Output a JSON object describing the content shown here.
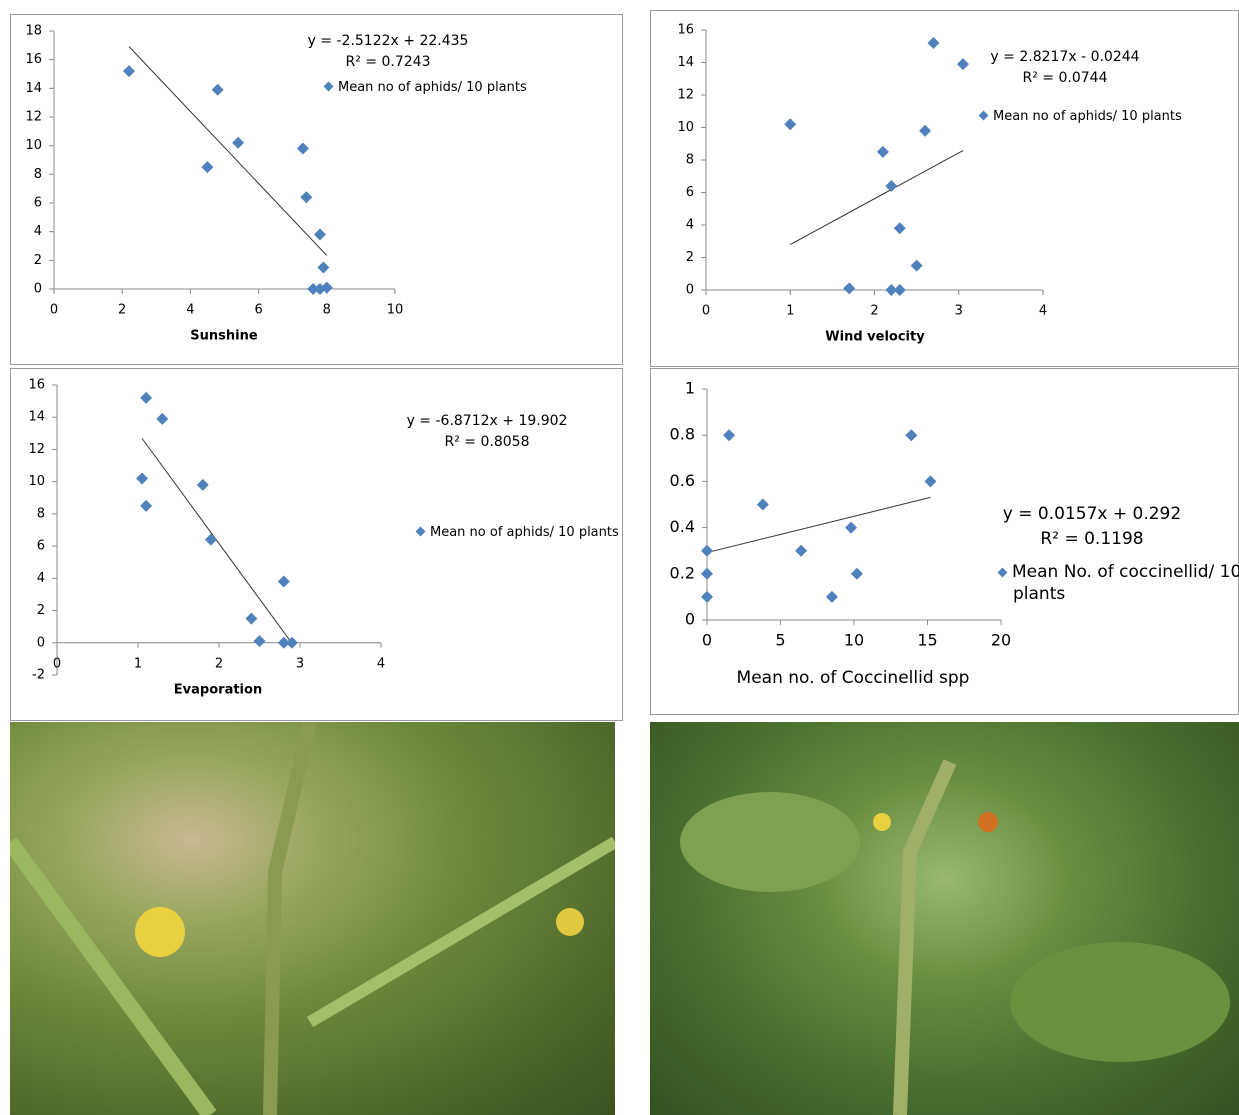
{
  "chart_data": [
    {
      "type": "scatter",
      "xlabel": "Sunshine",
      "x": [
        2.2,
        4.8,
        4.5,
        5.4,
        7.3,
        7.4,
        7.8,
        7.9,
        7.6,
        7.8,
        8.0
      ],
      "series": [
        {
          "name": "Mean no of  aphids/ 10 plants",
          "color": "#4f81bd",
          "values": [
            15.2,
            13.9,
            8.5,
            10.2,
            9.8,
            6.4,
            3.8,
            1.5,
            0,
            0,
            0.1
          ]
        }
      ],
      "trendline": {
        "slope": -2.5122,
        "intercept": 22.435,
        "label": "y = -2.5122x + 22.435",
        "r2_label": "R² = 0.7243"
      },
      "xlim": [
        0,
        10
      ],
      "xticks": [
        0,
        2,
        4,
        6,
        8,
        10
      ],
      "ylim": [
        0,
        18
      ],
      "yticks": [
        0,
        2,
        4,
        6,
        8,
        10,
        12,
        14,
        16,
        18
      ],
      "grid": false
    },
    {
      "type": "scatter",
      "xlabel": "Wind velocity",
      "x": [
        1.0,
        1.7,
        2.1,
        2.2,
        2.2,
        2.3,
        2.3,
        2.5,
        2.6,
        2.7,
        3.05
      ],
      "series": [
        {
          "name": "Mean no of  aphids/ 10 plants",
          "color": "#4f81bd",
          "values": [
            10.2,
            0.1,
            8.5,
            6.4,
            0,
            3.8,
            0,
            1.5,
            9.8,
            15.2,
            13.9
          ]
        }
      ],
      "trendline": {
        "slope": 2.8217,
        "intercept": -0.0244,
        "label": "y = 2.8217x - 0.0244",
        "r2_label": "R² = 0.0744"
      },
      "xlim": [
        0,
        4
      ],
      "xticks": [
        0,
        1,
        2,
        3,
        4
      ],
      "ylim": [
        0,
        16
      ],
      "yticks": [
        0,
        2,
        4,
        6,
        8,
        10,
        12,
        14,
        16
      ],
      "grid": false
    },
    {
      "type": "scatter",
      "xlabel": "Evaporation",
      "x": [
        1.1,
        1.3,
        1.05,
        1.1,
        1.8,
        1.9,
        2.8,
        2.4,
        2.5,
        2.8,
        2.9
      ],
      "series": [
        {
          "name": "Mean no of  aphids/ 10 plants",
          "color": "#4f81bd",
          "values": [
            15.2,
            13.9,
            10.2,
            8.5,
            9.8,
            6.4,
            3.8,
            1.5,
            0.1,
            0,
            0
          ]
        }
      ],
      "trendline": {
        "slope": -6.8712,
        "intercept": 19.902,
        "label": "y = -6.8712x + 19.902",
        "r2_label": "R² = 0.8058"
      },
      "xlim": [
        0,
        4
      ],
      "xticks": [
        0,
        1,
        2,
        3,
        4
      ],
      "ylim": [
        -2,
        16
      ],
      "yticks": [
        -2,
        0,
        2,
        4,
        6,
        8,
        10,
        12,
        14,
        16
      ],
      "grid": false
    },
    {
      "type": "scatter",
      "xlabel": "Mean no. of Coccinellid spp",
      "x": [
        0,
        0,
        0,
        1.5,
        3.8,
        6.4,
        8.5,
        9.8,
        10.2,
        13.9,
        15.2
      ],
      "series": [
        {
          "name": "Mean No. of coccinellid/ 10 plants",
          "color": "#4f81bd",
          "values": [
            0.3,
            0.2,
            0.1,
            0.8,
            0.5,
            0.3,
            0.1,
            0.4,
            0.2,
            0.8,
            0.6
          ]
        }
      ],
      "trendline": {
        "slope": 0.0157,
        "intercept": 0.292,
        "label": "y = 0.0157x + 0.292",
        "r2_label": "R² = 0.1198"
      },
      "xlim": [
        0,
        20
      ],
      "xticks": [
        0,
        5,
        10,
        15,
        20
      ],
      "ylim": [
        0,
        1
      ],
      "yticks": [
        0,
        0.2,
        0.4,
        0.6,
        0.8,
        1
      ],
      "grid": false
    }
  ]
}
